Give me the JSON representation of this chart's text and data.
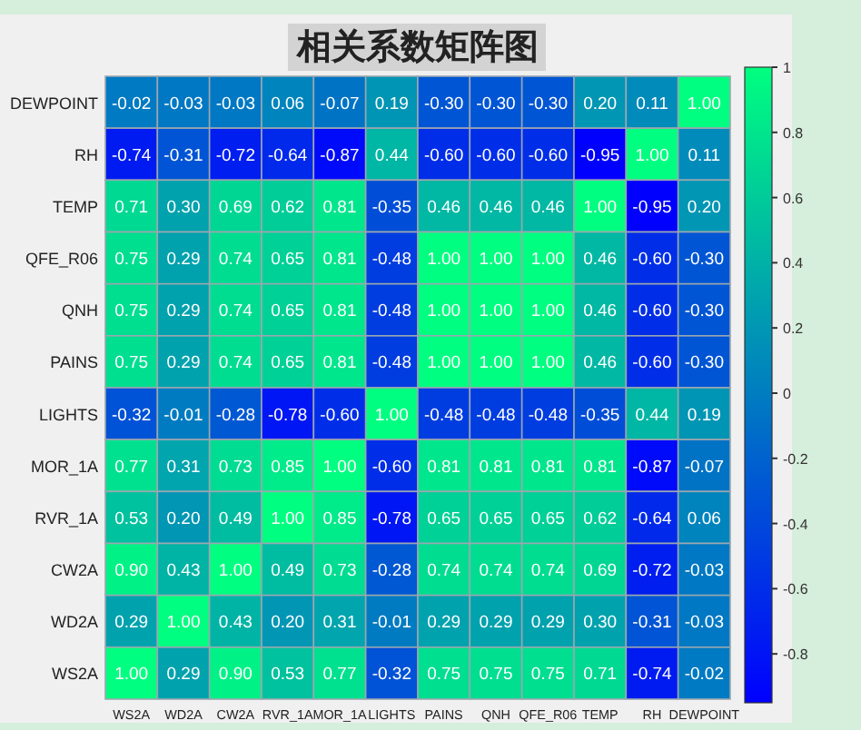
{
  "chart_data": {
    "type": "heatmap",
    "title": "相关系数矩阵图",
    "categories": [
      "WS2A",
      "WD2A",
      "CW2A",
      "RVR_1A",
      "MOR_1A",
      "LIGHTS",
      "PAINS",
      "QNH",
      "QFE_R06",
      "TEMP",
      "RH",
      "DEWPOINT"
    ],
    "y_categories": [
      "DEWPOINT",
      "RH",
      "TEMP",
      "QFE_R06",
      "QNH",
      "PAINS",
      "LIGHTS",
      "MOR_1A",
      "RVR_1A",
      "CW2A",
      "WD2A",
      "WS2A"
    ],
    "cells": [
      [
        -0.02,
        -0.03,
        -0.03,
        0.06,
        -0.07,
        0.19,
        -0.3,
        -0.3,
        -0.3,
        0.2,
        0.11,
        1.0
      ],
      [
        -0.74,
        -0.31,
        -0.72,
        -0.64,
        -0.87,
        0.44,
        -0.6,
        -0.6,
        -0.6,
        -0.95,
        1.0,
        0.11
      ],
      [
        0.71,
        0.3,
        0.69,
        0.62,
        0.81,
        -0.35,
        0.46,
        0.46,
        0.46,
        1.0,
        -0.95,
        0.2
      ],
      [
        0.75,
        0.29,
        0.74,
        0.65,
        0.81,
        -0.48,
        1.0,
        1.0,
        1.0,
        0.46,
        -0.6,
        -0.3
      ],
      [
        0.75,
        0.29,
        0.74,
        0.65,
        0.81,
        -0.48,
        1.0,
        1.0,
        1.0,
        0.46,
        -0.6,
        -0.3
      ],
      [
        0.75,
        0.29,
        0.74,
        0.65,
        0.81,
        -0.48,
        1.0,
        1.0,
        1.0,
        0.46,
        -0.6,
        -0.3
      ],
      [
        -0.32,
        -0.01,
        -0.28,
        -0.78,
        -0.6,
        1.0,
        -0.48,
        -0.48,
        -0.48,
        -0.35,
        0.44,
        0.19
      ],
      [
        0.77,
        0.31,
        0.73,
        0.85,
        1.0,
        -0.6,
        0.81,
        0.81,
        0.81,
        0.81,
        -0.87,
        -0.07
      ],
      [
        0.53,
        0.2,
        0.49,
        1.0,
        0.85,
        -0.78,
        0.65,
        0.65,
        0.65,
        0.62,
        -0.64,
        0.06
      ],
      [
        0.9,
        0.43,
        1.0,
        0.49,
        0.73,
        -0.28,
        0.74,
        0.74,
        0.74,
        0.69,
        -0.72,
        -0.03
      ],
      [
        0.29,
        1.0,
        0.43,
        0.2,
        0.31,
        -0.01,
        0.29,
        0.29,
        0.29,
        0.3,
        -0.31,
        -0.03
      ],
      [
        1.0,
        0.29,
        0.9,
        0.53,
        0.77,
        -0.32,
        0.75,
        0.75,
        0.75,
        0.71,
        -0.74,
        -0.02
      ]
    ],
    "cell_labels": [
      [
        "-0.02",
        "-0.03",
        "-0.03",
        "0.06",
        "-0.07",
        "0.19",
        "-0.30",
        "-0.30",
        "-0.30",
        "0.20",
        "0.11",
        "1.00"
      ],
      [
        "-0.74",
        "-0.31",
        "-0.72",
        "-0.64",
        "-0.87",
        "0.44",
        "-0.60",
        "-0.60",
        "-0.60",
        "-0.95",
        "1.00",
        "0.11"
      ],
      [
        "0.71",
        "0.30",
        "0.69",
        "0.62",
        "0.81",
        "-0.35",
        "0.46",
        "0.46",
        "0.46",
        "1.00",
        "-0.95",
        "0.20"
      ],
      [
        "0.75",
        "0.29",
        "0.74",
        "0.65",
        "0.81",
        "-0.48",
        "1.00",
        "1.00",
        "1.00",
        "0.46",
        "-0.60",
        "-0.30"
      ],
      [
        "0.75",
        "0.29",
        "0.74",
        "0.65",
        "0.81",
        "-0.48",
        "1.00",
        "1.00",
        "1.00",
        "0.46",
        "-0.60",
        "-0.30"
      ],
      [
        "0.75",
        "0.29",
        "0.74",
        "0.65",
        "0.81",
        "-0.48",
        "1.00",
        "1.00",
        "1.00",
        "0.46",
        "-0.60",
        "-0.30"
      ],
      [
        "-0.32",
        "-0.01",
        "-0.28",
        "-0.78",
        "-0.60",
        "1.00",
        "-0.48",
        "-0.48",
        "-0.48",
        "-0.35",
        "0.44",
        "0.19"
      ],
      [
        "0.77",
        "0.31",
        "0.73",
        "0.85",
        "1.00",
        "-0.60",
        "0.81",
        "0.81",
        "0.81",
        "0.81",
        "-0.87",
        "-0.07"
      ],
      [
        "0.53",
        "0.20",
        "0.49",
        "1.00",
        "0.85",
        "-0.78",
        "0.65",
        "0.65",
        "0.65",
        "0.62",
        "-0.64",
        "0.06"
      ],
      [
        "0.90",
        "0.43",
        "1.00",
        "0.49",
        "0.73",
        "-0.28",
        "0.74",
        "0.74",
        "0.74",
        "0.69",
        "-0.72",
        "-0.03"
      ],
      [
        "0.29",
        "1.00",
        "0.43",
        "0.20",
        "0.31",
        "-0.01",
        "0.29",
        "0.29",
        "0.29",
        "0.30",
        "-0.31",
        "-0.03"
      ],
      [
        "1.00",
        "0.29",
        "0.90",
        "0.53",
        "0.77",
        "-0.32",
        "0.75",
        "0.75",
        "0.75",
        "0.71",
        "-0.74",
        "-0.02"
      ]
    ],
    "clim": [
      -0.95,
      1
    ],
    "cticks": [
      1,
      0.8,
      0.6,
      0.4,
      0.2,
      0,
      -0.2,
      -0.4,
      -0.6,
      -0.8
    ],
    "data_labels": true
  }
}
